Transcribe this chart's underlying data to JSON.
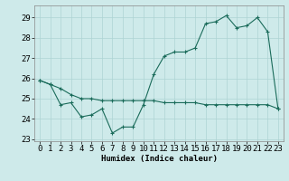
{
  "title": "",
  "xlabel": "Humidex (Indice chaleur)",
  "ylabel": "",
  "background_color": "#ceeaea",
  "grid_color": "#add4d4",
  "line_color": "#1a6b5a",
  "xlim": [
    -0.5,
    23.5
  ],
  "ylim": [
    22.9,
    29.6
  ],
  "yticks": [
    23,
    24,
    25,
    26,
    27,
    28,
    29
  ],
  "xticks": [
    0,
    1,
    2,
    3,
    4,
    5,
    6,
    7,
    8,
    9,
    10,
    11,
    12,
    13,
    14,
    15,
    16,
    17,
    18,
    19,
    20,
    21,
    22,
    23
  ],
  "xtick_labels": [
    "0",
    "1",
    "2",
    "3",
    "4",
    "5",
    "6",
    "7",
    "8",
    "9",
    "10",
    "11",
    "12",
    "13",
    "14",
    "15",
    "16",
    "17",
    "18",
    "19",
    "20",
    "21",
    "22",
    "23"
  ],
  "line1_x": [
    0,
    1,
    2,
    3,
    4,
    5,
    6,
    7,
    8,
    9,
    10,
    11,
    12,
    13,
    14,
    15,
    16,
    17,
    18,
    19,
    20,
    21,
    22,
    23
  ],
  "line1_y": [
    25.9,
    25.7,
    24.7,
    24.8,
    24.1,
    24.2,
    24.5,
    23.3,
    23.6,
    23.6,
    24.7,
    26.2,
    27.1,
    27.3,
    27.3,
    27.5,
    28.7,
    28.8,
    29.1,
    28.5,
    28.6,
    29.0,
    28.3,
    24.5
  ],
  "line2_x": [
    0,
    1,
    2,
    3,
    4,
    5,
    6,
    7,
    8,
    9,
    10,
    11,
    12,
    13,
    14,
    15,
    16,
    17,
    18,
    19,
    20,
    21,
    22,
    23
  ],
  "line2_y": [
    25.9,
    25.7,
    25.5,
    25.2,
    25.0,
    25.0,
    24.9,
    24.9,
    24.9,
    24.9,
    24.9,
    24.9,
    24.8,
    24.8,
    24.8,
    24.8,
    24.7,
    24.7,
    24.7,
    24.7,
    24.7,
    24.7,
    24.7,
    24.5
  ],
  "marker_style": "+",
  "marker_size": 3,
  "line_width": 0.8,
  "font_size": 6.5
}
